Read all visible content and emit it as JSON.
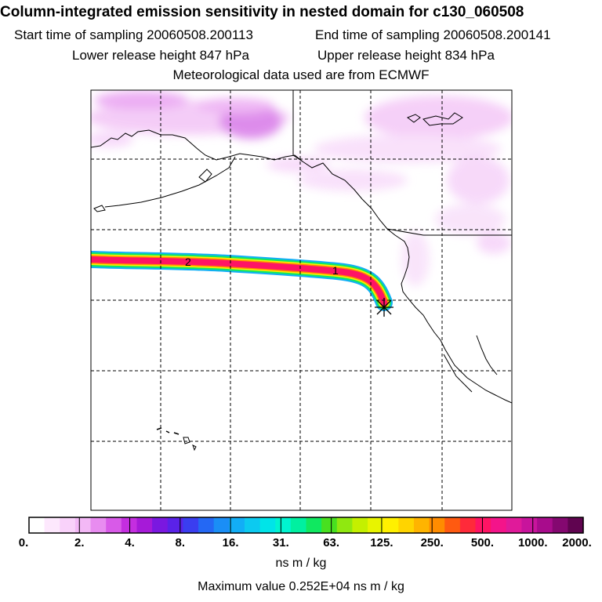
{
  "title": "Column-integrated emission sensitivity in nested domain for c130_060508",
  "sampling": {
    "start_label": "Start time of sampling",
    "start_value": "20060508.200113",
    "end_label": "End time of sampling",
    "end_value": "20060508.200141"
  },
  "release": {
    "lower_label": "Lower release height",
    "lower_value": "847 hPa",
    "upper_label": "Upper release height",
    "upper_value": "834 hPa"
  },
  "met_note": "Meteorological data used are from ECMWF",
  "colorbar": {
    "ticks": [
      "0.",
      "2.",
      "4.",
      "8.",
      "16.",
      "31.",
      "63.",
      "125.",
      "250.",
      "500.",
      "1000.",
      "2000."
    ],
    "colors": [
      "#ffffff",
      "#fde8fd",
      "#f9d2fa",
      "#f3b8f6",
      "#e88cf0",
      "#d85ae8",
      "#c42ee0",
      "#a61ad8",
      "#7a18e0",
      "#5a22e8",
      "#3a3ef0",
      "#2468f4",
      "#1a8ef6",
      "#12aef6",
      "#0ccaf0",
      "#00e4e8",
      "#00f4d0",
      "#00f0a0",
      "#10e860",
      "#48e020",
      "#90e810",
      "#c4f000",
      "#e8f400",
      "#fff000",
      "#ffd400",
      "#ffb400",
      "#ff8c00",
      "#ff5a10",
      "#ff2a3a",
      "#ff1464",
      "#f4148a",
      "#e01a9a",
      "#c8149c",
      "#a80c8c",
      "#840870",
      "#600450"
    ],
    "unit": "ns m / kg"
  },
  "max_value_text": "Maximum value  0.252E+04 ns m / kg",
  "chart_data": {
    "type": "heatmap",
    "title": "Column-integrated emission sensitivity in nested domain for c130_060508",
    "colorbar_levels": [
      0,
      2,
      4,
      8,
      16,
      31,
      63,
      125,
      250,
      500,
      1000,
      2000
    ],
    "colorbar_unit": "ns m / kg",
    "maximum_value": 2520,
    "track_labels": [
      "1",
      "2"
    ],
    "release_marker": "star"
  }
}
